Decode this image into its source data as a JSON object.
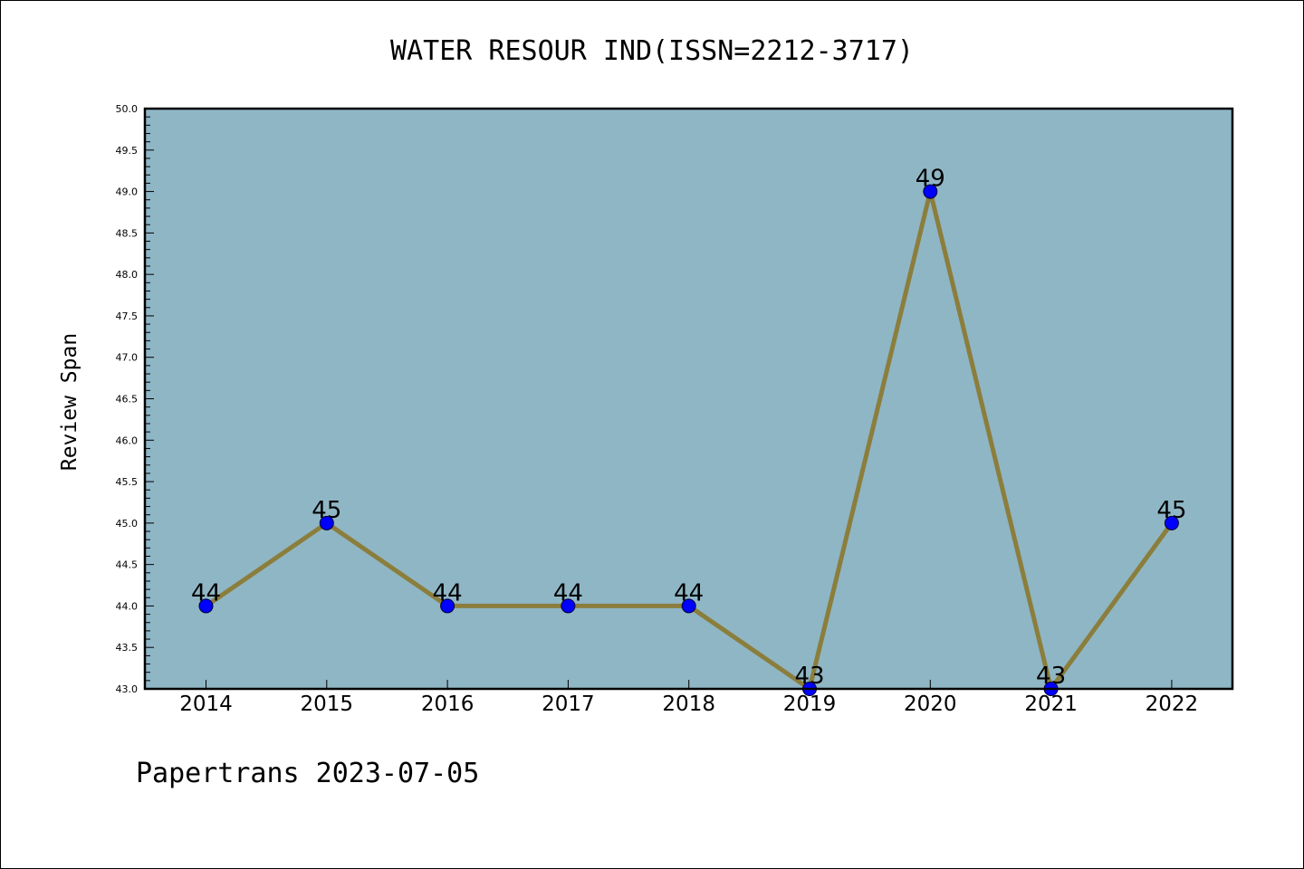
{
  "footer": "Papertrans 2023-07-05",
  "chart_data": {
    "type": "line",
    "title": "WATER RESOUR IND(ISSN=2212-3717)",
    "xlabel": "",
    "ylabel": "Review Span",
    "x": [
      "2014",
      "2015",
      "2016",
      "2017",
      "2018",
      "2019",
      "2020",
      "2021",
      "2022"
    ],
    "values": [
      44,
      45,
      44,
      44,
      44,
      43,
      49,
      43,
      45
    ],
    "data_labels": [
      "44",
      "45",
      "44",
      "44",
      "44",
      "43",
      "49",
      "43",
      "45"
    ],
    "ylim": [
      43.0,
      50.0
    ],
    "yticks": [
      "43.0",
      "43.5",
      "44.0",
      "44.5",
      "45.0",
      "45.5",
      "46.0",
      "46.5",
      "47.0",
      "47.5",
      "48.0",
      "48.5",
      "49.0",
      "49.5",
      "50.0"
    ],
    "grid": false,
    "legend": "none",
    "colors": {
      "plot_background": "#8fb6c5",
      "line": "#8b7e3c",
      "marker": "#0000ff"
    }
  }
}
